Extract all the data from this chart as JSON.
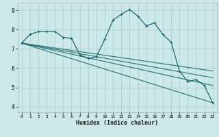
{
  "title": "",
  "xlabel": "Humidex (Indice chaleur)",
  "bg_color": "#cce8e8",
  "grid_color": "#aacccc",
  "line_color": "#1a6b6b",
  "xlim": [
    -0.5,
    23.5
  ],
  "ylim": [
    3.7,
    9.4
  ],
  "xticks": [
    0,
    1,
    2,
    3,
    4,
    5,
    6,
    7,
    8,
    9,
    10,
    11,
    12,
    13,
    14,
    15,
    16,
    17,
    18,
    19,
    20,
    21,
    22,
    23
  ],
  "yticks": [
    4,
    5,
    6,
    7,
    8,
    9
  ],
  "main_line": {
    "x": [
      0,
      1,
      2,
      3,
      4,
      5,
      6,
      7,
      8,
      9,
      10,
      11,
      12,
      13,
      14,
      15,
      16,
      17,
      18,
      19,
      20,
      21,
      22,
      23
    ],
    "y": [
      7.3,
      7.75,
      7.9,
      7.9,
      7.9,
      7.6,
      7.55,
      6.7,
      6.5,
      6.6,
      7.5,
      8.5,
      8.8,
      9.05,
      8.7,
      8.2,
      8.35,
      7.75,
      7.35,
      5.85,
      5.3,
      5.4,
      5.1,
      4.2
    ]
  },
  "trend_lines": [
    {
      "x": [
        0,
        23
      ],
      "y": [
        7.3,
        5.85
      ]
    },
    {
      "x": [
        0,
        23
      ],
      "y": [
        7.3,
        5.5
      ]
    },
    {
      "x": [
        0,
        23
      ],
      "y": [
        7.3,
        5.1
      ]
    },
    {
      "x": [
        0,
        23
      ],
      "y": [
        7.3,
        4.2
      ]
    }
  ]
}
